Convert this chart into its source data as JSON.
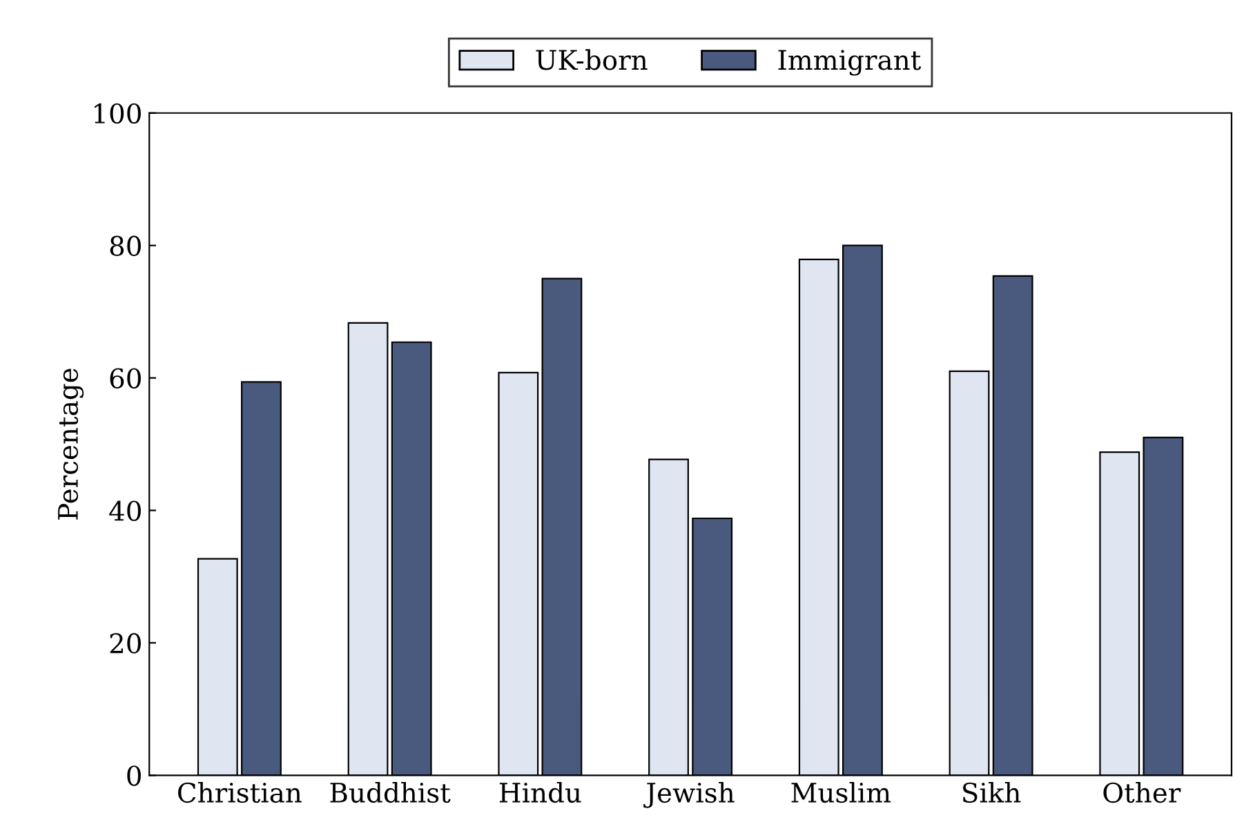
{
  "chart_data": {
    "type": "bar",
    "ylabel": "Percentage",
    "categories": [
      "Christian",
      "Buddhist",
      "Hindu",
      "Jewish",
      "Muslim",
      "Sikh",
      "Other"
    ],
    "series": [
      {
        "name": "UK-born",
        "color": "#dfe6f2",
        "values": [
          32.7,
          68.3,
          60.8,
          47.7,
          77.9,
          61,
          48.8
        ]
      },
      {
        "name": "Immigrant",
        "color": "#4a5a7e",
        "values": [
          59.4,
          65.4,
          75,
          38.8,
          80,
          75.4,
          51
        ]
      }
    ],
    "ylim": [
      0,
      100
    ],
    "yticks": [
      0,
      20,
      40,
      60,
      80,
      100
    ],
    "grid": false,
    "legend": "top"
  }
}
